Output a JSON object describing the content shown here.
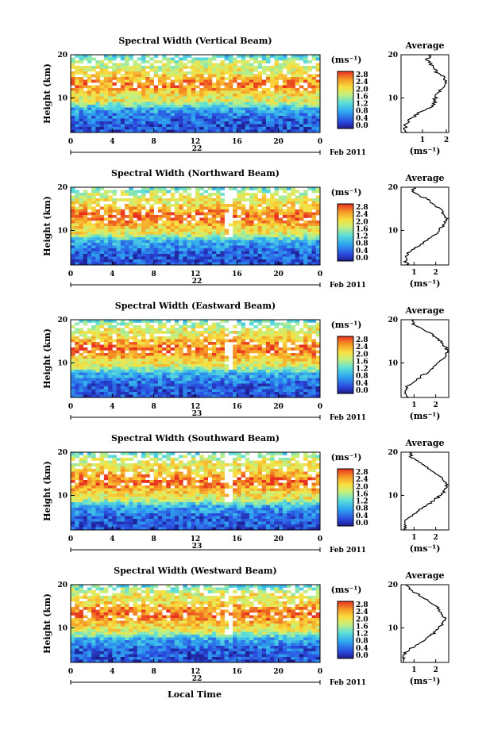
{
  "figure": {
    "xlabel": "Local Time",
    "month_label": "Feb 2011",
    "x_ticks": [
      "0",
      "4",
      "8",
      "12",
      "16",
      "20",
      "0"
    ],
    "y_label": "Height (km)",
    "y_ticks": [
      "20",
      "10"
    ],
    "colorbar_unit": "(ms⁻¹)",
    "colorbar_ticks": [
      "2.8",
      "2.4",
      "2.0",
      "1.6",
      "1.2",
      "0.8",
      "0.4",
      "0.0"
    ],
    "avg_title": "Average",
    "avg_unit": "(ms⁻¹)"
  },
  "chart_data": [
    {
      "type": "heatmap",
      "title": "Spectral Width (Vertical Beam)",
      "day_label": "22",
      "avg_ticks": [
        "1",
        "2"
      ],
      "avg_xlim": [
        0.1,
        2.1
      ],
      "avg_profile": {
        "height_km": [
          2,
          3,
          4,
          5,
          6,
          7,
          8,
          9,
          10,
          11,
          12,
          13,
          14,
          15,
          16,
          17,
          18,
          19,
          20
        ],
        "value": [
          0.3,
          0.25,
          0.3,
          0.45,
          0.7,
          1.0,
          1.35,
          1.5,
          1.55,
          1.6,
          1.75,
          1.9,
          1.95,
          1.85,
          1.6,
          1.45,
          1.3,
          1.2,
          1.4
        ]
      }
    },
    {
      "type": "heatmap",
      "title": "Spectral Width (Northward Beam)",
      "day_label": "22",
      "avg_ticks": [
        "1",
        "2"
      ],
      "avg_xlim": [
        0.4,
        2.6
      ],
      "avg_profile": {
        "height_km": [
          2,
          3,
          4,
          5,
          6,
          7,
          8,
          9,
          10,
          11,
          12,
          13,
          14,
          15,
          16,
          17,
          18,
          19,
          20
        ],
        "value": [
          0.7,
          0.6,
          0.6,
          0.8,
          1.1,
          1.4,
          1.7,
          1.95,
          2.15,
          2.3,
          2.45,
          2.5,
          2.35,
          2.2,
          1.95,
          1.7,
          1.3,
          0.9,
          1.0
        ]
      }
    },
    {
      "type": "heatmap",
      "title": "Spectral Width (Eastward Beam)",
      "day_label": "23",
      "avg_ticks": [
        "1",
        "2"
      ],
      "avg_xlim": [
        0.4,
        2.6
      ],
      "avg_profile": {
        "height_km": [
          2,
          3,
          4,
          5,
          6,
          7,
          8,
          9,
          10,
          11,
          12,
          13,
          14,
          15,
          16,
          17,
          18,
          19,
          20
        ],
        "value": [
          0.7,
          0.6,
          0.6,
          0.8,
          1.1,
          1.35,
          1.7,
          1.9,
          2.1,
          2.3,
          2.45,
          2.55,
          2.4,
          2.25,
          1.95,
          1.7,
          1.3,
          0.9,
          1.0
        ]
      }
    },
    {
      "type": "heatmap",
      "title": "Spectral Width (Southward Beam)",
      "day_label": "23",
      "avg_ticks": [
        "1",
        "2"
      ],
      "avg_xlim": [
        0.4,
        2.6
      ],
      "avg_profile": {
        "height_km": [
          2,
          3,
          4,
          5,
          6,
          7,
          8,
          9,
          10,
          11,
          12,
          13,
          14,
          15,
          16,
          17,
          18,
          19,
          20
        ],
        "value": [
          0.6,
          0.6,
          0.6,
          0.8,
          1.1,
          1.35,
          1.65,
          1.95,
          2.2,
          2.4,
          2.55,
          2.45,
          2.25,
          2.0,
          1.75,
          1.5,
          1.2,
          0.85,
          0.8
        ]
      }
    },
    {
      "type": "heatmap",
      "title": "Spectral Width (Westward Beam)",
      "day_label": "22",
      "avg_ticks": [
        "1",
        "2"
      ],
      "avg_xlim": [
        0.4,
        2.6
      ],
      "avg_profile": {
        "height_km": [
          2,
          3,
          4,
          5,
          6,
          7,
          8,
          9,
          10,
          11,
          12,
          13,
          14,
          15,
          16,
          17,
          18,
          19,
          20
        ],
        "value": [
          0.6,
          0.5,
          0.55,
          0.8,
          1.05,
          1.4,
          1.7,
          1.95,
          2.15,
          2.3,
          2.45,
          2.35,
          2.2,
          2.0,
          1.75,
          1.45,
          1.1,
          0.8,
          0.6
        ]
      }
    }
  ]
}
